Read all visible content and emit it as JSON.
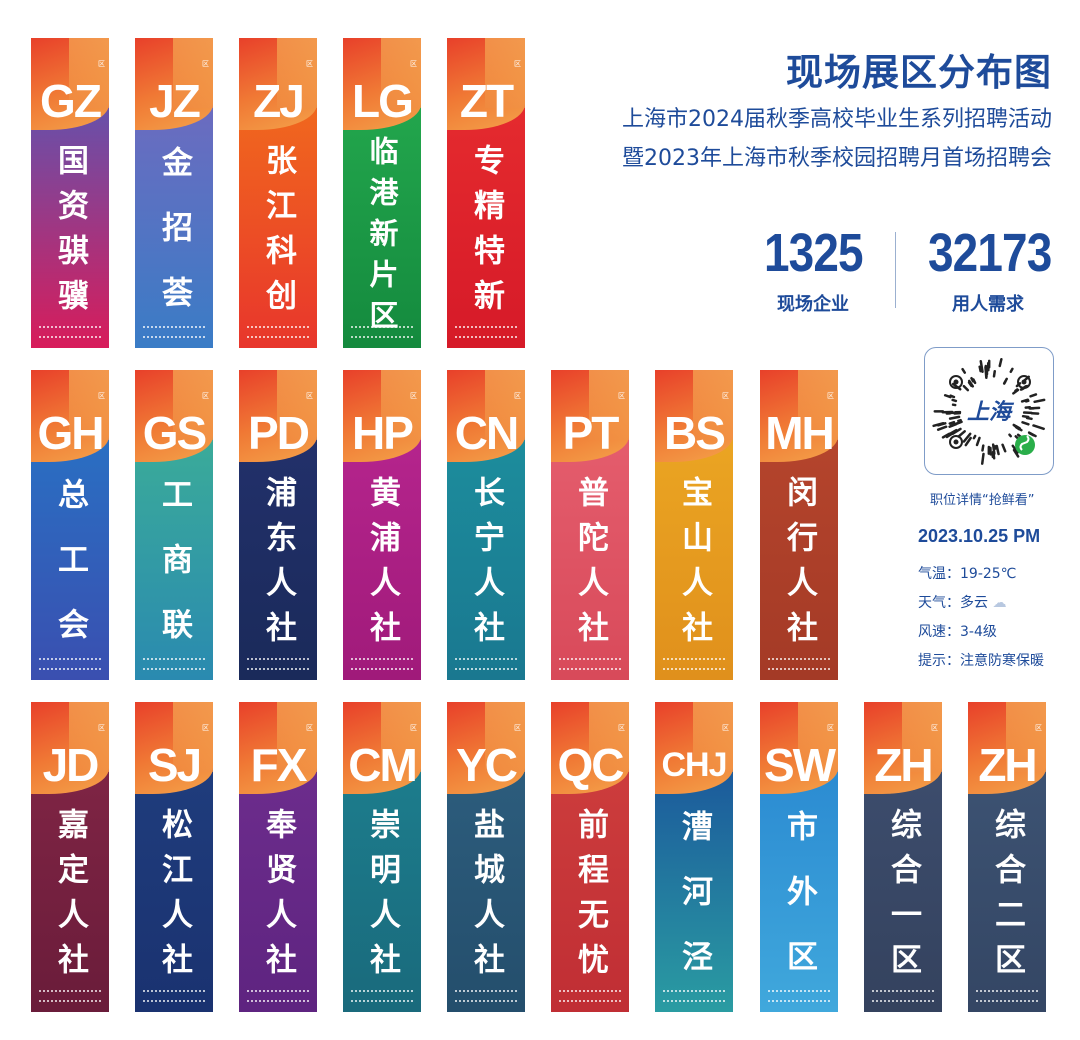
{
  "header": {
    "title": "现场展区分布图",
    "subtitle_1": "上海市2024届秋季高校毕业生系列招聘活动",
    "subtitle_2": "暨2023年上海市秋季校园招聘月首场招聘会"
  },
  "stats": [
    {
      "value": "1325",
      "label": "现场企业"
    },
    {
      "value": "32173",
      "label": "用人需求"
    }
  ],
  "qr": {
    "center_text": "上海",
    "caption": "职位详情“抢鲜看”"
  },
  "info": {
    "date": "2023.10.25 PM",
    "temperature": "气温：19-25℃",
    "weather": "天气：多云",
    "weather_icon": "partly-cloudy-icon",
    "wind": "风速：3-4级",
    "tip": "提示：注意防寒保暖"
  },
  "zone_suffix": "区",
  "colors": {
    "accent": "#1e4b9a",
    "cap_orange": "#f07a35"
  },
  "banners": [
    {
      "code": "GZ",
      "name": "国资骐骥",
      "color1": "#6a4fa8",
      "color2": "#d81c5a"
    },
    {
      "code": "JZ",
      "name": "金招荟",
      "color1": "#6a6cc0",
      "color2": "#3a7cc6"
    },
    {
      "code": "ZJ",
      "name": "张江科创",
      "color1": "#f0661e",
      "color2": "#e8362c"
    },
    {
      "code": "LG",
      "name": "临港新片区",
      "color1": "#22a54c",
      "color2": "#148a3e"
    },
    {
      "code": "ZT",
      "name": "专精特新",
      "color1": "#e42a2e",
      "color2": "#d61a28"
    },
    {
      "code": "GH",
      "name": "总工会",
      "color1": "#2a6ec2",
      "color2": "#3a4fb0"
    },
    {
      "code": "GS",
      "name": "工商联",
      "color1": "#3aaa9a",
      "color2": "#2a8ab0"
    },
    {
      "code": "PD",
      "name": "浦东人社",
      "color1": "#22306a",
      "color2": "#1a2a5a"
    },
    {
      "code": "HP",
      "name": "黄浦人社",
      "color1": "#b4248c",
      "color2": "#a01a7a"
    },
    {
      "code": "CN",
      "name": "长宁人社",
      "color1": "#1c8c9c",
      "color2": "#1a7890"
    },
    {
      "code": "PT",
      "name": "普陀人社",
      "color1": "#e45c6c",
      "color2": "#d84a5a"
    },
    {
      "code": "BS",
      "name": "宝山人社",
      "color1": "#eaa422",
      "color2": "#e0901c"
    },
    {
      "code": "MH",
      "name": "闵行人社",
      "color1": "#b4442c",
      "color2": "#a43a26"
    },
    {
      "code": "JD",
      "name": "嘉定人社",
      "color1": "#7e2444",
      "color2": "#6a1c3a"
    },
    {
      "code": "SJ",
      "name": "松江人社",
      "color1": "#1f3c7c",
      "color2": "#1a3270"
    },
    {
      "code": "FX",
      "name": "奉贤人社",
      "color1": "#6c2c8c",
      "color2": "#5e2480"
    },
    {
      "code": "CM",
      "name": "崇明人社",
      "color1": "#1c7c8c",
      "color2": "#1a6a7c"
    },
    {
      "code": "YC",
      "name": "盐城人社",
      "color1": "#2c5c7c",
      "color2": "#244e6c"
    },
    {
      "code": "QC",
      "name": "前程无忧",
      "color1": "#cc3c3c",
      "color2": "#c02e34"
    },
    {
      "code": "CHJ",
      "name": "漕河泾",
      "color1": "#1c5c9c",
      "color2": "#2a9ca2"
    },
    {
      "code": "SW",
      "name": "市外区",
      "color1": "#2c8cd2",
      "color2": "#40a8dc"
    },
    {
      "code": "ZH",
      "name": "综合一区",
      "color1": "#3c4c6c",
      "color2": "#34425e"
    },
    {
      "code": "ZH",
      "name": "综合二区",
      "color1": "#3c5272",
      "color2": "#344664"
    }
  ]
}
